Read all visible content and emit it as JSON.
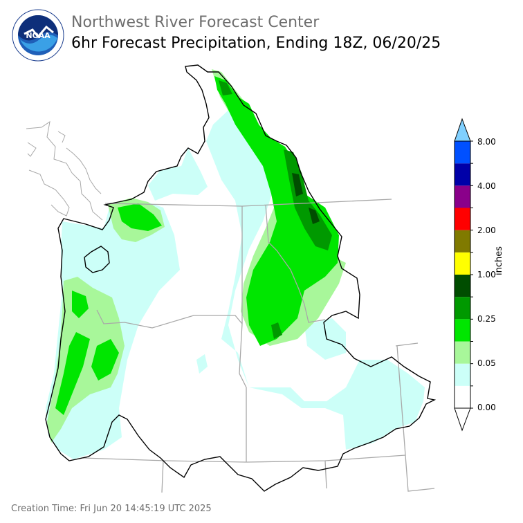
{
  "header": {
    "title": "Northwest River Forecast Center",
    "subtitle": "6hr Forecast Precipitation, Ending 18Z, 06/20/25",
    "logo_text": "NOAA",
    "logo_ring_text": "NATIONAL OCEANIC AND ATMOSPHERIC ADMINISTRATION · U.S. DEPARTMENT OF COMMERCE"
  },
  "colorbar": {
    "unit": "inches",
    "tick_labels": [
      "0.00",
      "0.05",
      "0.25",
      "1.00",
      "2.00",
      "4.00",
      "8.00"
    ],
    "colors": [
      "#ffffff",
      "#ccfff8",
      "#a8f79a",
      "#00e600",
      "#009900",
      "#004d00",
      "#ffff00",
      "#807a00",
      "#ff0000",
      "#8a008a",
      "#0000a8",
      "#0050ff",
      "#80d0ff"
    ]
  },
  "footer": {
    "creation_time": "Creation Time: Fri Jun 20 14:45:19 UTC 2025"
  }
}
